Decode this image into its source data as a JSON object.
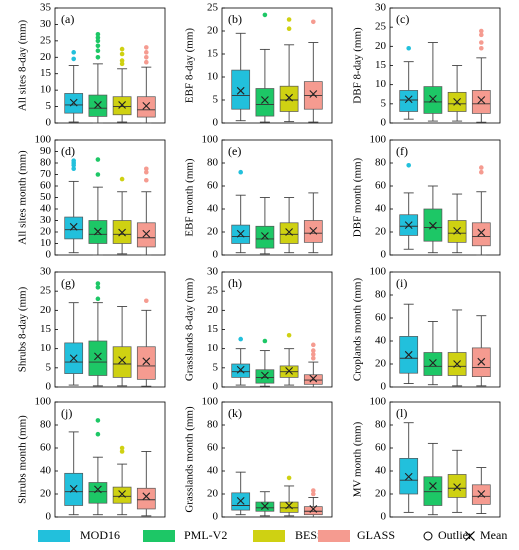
{
  "legend": {
    "series": [
      {
        "name": "MOD16",
        "color": "#22c0dc"
      },
      {
        "name": "PML-V2",
        "color": "#1dc766"
      },
      {
        "name": "BESS",
        "color": "#cfd112"
      },
      {
        "name": "GLASS",
        "color": "#f59b90"
      }
    ],
    "outlier": "Outlier",
    "mean": "Mean"
  },
  "chart_data": [
    {
      "type": "box",
      "label": "(a)",
      "ylabel": "All sites 8-day (mm)",
      "ylim": [
        0,
        35
      ],
      "yticks": [
        0,
        5,
        10,
        15,
        20,
        25,
        30,
        35
      ],
      "boxes": [
        {
          "whisker_low": 0.3,
          "q1": 3,
          "median": 5.5,
          "q3": 9,
          "whisker_high": 17.5,
          "mean": 6.2,
          "outliers": [
            19.5,
            21.5
          ]
        },
        {
          "whisker_low": 0,
          "q1": 2,
          "median": 4.5,
          "q3": 8.5,
          "whisker_high": 18,
          "mean": 5.5,
          "outliers": [
            20,
            22,
            23.5,
            25,
            26,
            27
          ]
        },
        {
          "whisker_low": 0.3,
          "q1": 2.5,
          "median": 5,
          "q3": 8,
          "whisker_high": 16.5,
          "mean": 5.5,
          "outliers": [
            18,
            19,
            21,
            22.5
          ]
        },
        {
          "whisker_low": 0,
          "q1": 1.8,
          "median": 4,
          "q3": 8,
          "whisker_high": 17,
          "mean": 5.2,
          "outliers": [
            18.5,
            20,
            21.5,
            23
          ]
        }
      ]
    },
    {
      "type": "box",
      "label": "(b)",
      "ylabel": "EBF 8-day (mm)",
      "ylim": [
        0,
        25
      ],
      "yticks": [
        0,
        5,
        10,
        15,
        20,
        25
      ],
      "boxes": [
        {
          "whisker_low": 0.5,
          "q1": 3,
          "median": 6,
          "q3": 11.5,
          "whisker_high": 19.5,
          "mean": 7,
          "outliers": []
        },
        {
          "whisker_low": 0.2,
          "q1": 1.5,
          "median": 4,
          "q3": 7.5,
          "whisker_high": 16,
          "mean": 5,
          "outliers": [
            23.5
          ]
        },
        {
          "whisker_low": 0.3,
          "q1": 2.5,
          "median": 5,
          "q3": 8,
          "whisker_high": 17,
          "mean": 5.5,
          "outliers": [
            20.5,
            22.5
          ]
        },
        {
          "whisker_low": 0.2,
          "q1": 3,
          "median": 6,
          "q3": 9,
          "whisker_high": 17.5,
          "mean": 6.3,
          "outliers": [
            22
          ]
        }
      ]
    },
    {
      "type": "box",
      "label": "(c)",
      "ylabel": "DBF 8-day (mm)",
      "ylim": [
        0,
        30
      ],
      "yticks": [
        0,
        5,
        10,
        15,
        20,
        25,
        30
      ],
      "boxes": [
        {
          "whisker_low": 1,
          "q1": 3,
          "median": 6,
          "q3": 8.5,
          "whisker_high": 16,
          "mean": 6.2,
          "outliers": [
            19.5
          ]
        },
        {
          "whisker_low": 0.5,
          "q1": 2.5,
          "median": 5.5,
          "q3": 9.5,
          "whisker_high": 21,
          "mean": 6.3,
          "outliers": []
        },
        {
          "whisker_low": 0.5,
          "q1": 3,
          "median": 5,
          "q3": 8,
          "whisker_high": 15,
          "mean": 5.5,
          "outliers": []
        },
        {
          "whisker_low": 0.2,
          "q1": 2.5,
          "median": 5,
          "q3": 8.5,
          "whisker_high": 17,
          "mean": 6,
          "outliers": [
            19.5,
            21,
            23,
            24
          ]
        }
      ]
    },
    {
      "type": "box",
      "label": "(d)",
      "ylabel": "All sites month (mm)",
      "ylim": [
        0,
        100
      ],
      "yticks": [
        0,
        10,
        20,
        30,
        40,
        50,
        60,
        70,
        80,
        90,
        100
      ],
      "boxes": [
        {
          "whisker_low": 2,
          "q1": 14,
          "median": 22,
          "q3": 33,
          "whisker_high": 64,
          "mean": 24.5,
          "outliers": [
            75,
            78,
            80,
            82
          ]
        },
        {
          "whisker_low": 0,
          "q1": 10,
          "median": 18,
          "q3": 30,
          "whisker_high": 59,
          "mean": 20.5,
          "outliers": [
            70,
            83
          ]
        },
        {
          "whisker_low": 1,
          "q1": 10,
          "median": 18,
          "q3": 30,
          "whisker_high": 55,
          "mean": 19.5,
          "outliers": [
            66
          ]
        },
        {
          "whisker_low": 0,
          "q1": 7,
          "median": 15,
          "q3": 28,
          "whisker_high": 55,
          "mean": 18.5,
          "outliers": [
            65,
            72,
            75
          ]
        }
      ]
    },
    {
      "type": "box",
      "label": "(e)",
      "ylabel": "EBF month (mm)",
      "ylim": [
        0,
        100
      ],
      "yticks": [
        0,
        20,
        40,
        60,
        80,
        100
      ],
      "boxes": [
        {
          "whisker_low": 2,
          "q1": 10,
          "median": 16,
          "q3": 26,
          "whisker_high": 52,
          "mean": 18.5,
          "outliers": [
            72
          ]
        },
        {
          "whisker_low": 1,
          "q1": 6,
          "median": 14,
          "q3": 25,
          "whisker_high": 50,
          "mean": 16.5,
          "outliers": []
        },
        {
          "whisker_low": 2,
          "q1": 10,
          "median": 18,
          "q3": 28,
          "whisker_high": 50,
          "mean": 20,
          "outliers": []
        },
        {
          "whisker_low": 2,
          "q1": 11,
          "median": 19,
          "q3": 30,
          "whisker_high": 54,
          "mean": 21,
          "outliers": []
        }
      ]
    },
    {
      "type": "box",
      "label": "(f)",
      "ylabel": "DBF month (mm)",
      "ylim": [
        0,
        100
      ],
      "yticks": [
        0,
        20,
        40,
        60,
        80,
        100
      ],
      "boxes": [
        {
          "whisker_low": 5,
          "q1": 17,
          "median": 25,
          "q3": 35,
          "whisker_high": 54,
          "mean": 26,
          "outliers": [
            78
          ]
        },
        {
          "whisker_low": 2,
          "q1": 12,
          "median": 24,
          "q3": 40,
          "whisker_high": 60,
          "mean": 25.5,
          "outliers": []
        },
        {
          "whisker_low": 2,
          "q1": 11,
          "median": 19,
          "q3": 30,
          "whisker_high": 53,
          "mean": 21,
          "outliers": []
        },
        {
          "whisker_low": 0,
          "q1": 8,
          "median": 16,
          "q3": 28,
          "whisker_high": 55,
          "mean": 19.5,
          "outliers": [
            72,
            76
          ]
        }
      ]
    },
    {
      "type": "box",
      "label": "(g)",
      "ylabel": "Shrubs 8-day (mm)",
      "ylim": [
        0,
        30
      ],
      "yticks": [
        0,
        5,
        10,
        15,
        20,
        25,
        30
      ],
      "boxes": [
        {
          "whisker_low": 0.5,
          "q1": 3.5,
          "median": 6.5,
          "q3": 11.5,
          "whisker_high": 22,
          "mean": 7.5,
          "outliers": []
        },
        {
          "whisker_low": 0.3,
          "q1": 3,
          "median": 6.5,
          "q3": 12,
          "whisker_high": 22,
          "mean": 8,
          "outliers": [
            23,
            26,
            27
          ]
        },
        {
          "whisker_low": 0.3,
          "q1": 2.5,
          "median": 6,
          "q3": 10.5,
          "whisker_high": 21,
          "mean": 7,
          "outliers": []
        },
        {
          "whisker_low": 0.2,
          "q1": 2,
          "median": 5.5,
          "q3": 10.5,
          "whisker_high": 20,
          "mean": 6.7,
          "outliers": [
            22.5
          ]
        }
      ]
    },
    {
      "type": "box",
      "label": "(h)",
      "ylabel": "Grasslands 8-day (mm)",
      "ylim": [
        0,
        30
      ],
      "yticks": [
        0,
        5,
        10,
        15,
        20,
        25,
        30
      ],
      "boxes": [
        {
          "whisker_low": 0.5,
          "q1": 2.5,
          "median": 4,
          "q3": 6,
          "whisker_high": 10,
          "mean": 4.5,
          "outliers": [
            12.5
          ]
        },
        {
          "whisker_low": 0.2,
          "q1": 1,
          "median": 2.5,
          "q3": 4.5,
          "whisker_high": 9.5,
          "mean": 3,
          "outliers": [
            12
          ]
        },
        {
          "whisker_low": 0.5,
          "q1": 2.5,
          "median": 4,
          "q3": 5.5,
          "whisker_high": 10,
          "mean": 4.2,
          "outliers": [
            13.5
          ]
        },
        {
          "whisker_low": 0,
          "q1": 0.7,
          "median": 1.8,
          "q3": 3.2,
          "whisker_high": 6.5,
          "mean": 2.2,
          "outliers": [
            7.5,
            8.5,
            9.5,
            11
          ]
        }
      ]
    },
    {
      "type": "box",
      "label": "(i)",
      "ylabel": "Croplands month (mm)",
      "ylim": [
        0,
        100
      ],
      "yticks": [
        0,
        20,
        40,
        60,
        80,
        100
      ],
      "boxes": [
        {
          "whisker_low": 3,
          "q1": 12,
          "median": 25,
          "q3": 44,
          "whisker_high": 72,
          "mean": 28,
          "outliers": []
        },
        {
          "whisker_low": 2,
          "q1": 10,
          "median": 18,
          "q3": 30,
          "whisker_high": 57,
          "mean": 21,
          "outliers": []
        },
        {
          "whisker_low": 1,
          "q1": 10,
          "median": 18,
          "q3": 30,
          "whisker_high": 67,
          "mean": 20,
          "outliers": []
        },
        {
          "whisker_low": 1,
          "q1": 9,
          "median": 17,
          "q3": 34,
          "whisker_high": 62,
          "mean": 22,
          "outliers": []
        }
      ]
    },
    {
      "type": "box",
      "label": "(j)",
      "ylabel": "Shrubs  month (mm)",
      "ylim": [
        0,
        100
      ],
      "yticks": [
        0,
        20,
        40,
        60,
        80,
        100
      ],
      "boxes": [
        {
          "whisker_low": 2,
          "q1": 10,
          "median": 22,
          "q3": 38,
          "whisker_high": 74,
          "mean": 24.5,
          "outliers": []
        },
        {
          "whisker_low": 2,
          "q1": 12,
          "median": 22,
          "q3": 30,
          "whisker_high": 52,
          "mean": 24,
          "outliers": [
            72,
            84
          ]
        },
        {
          "whisker_low": 2,
          "q1": 12,
          "median": 18,
          "q3": 26,
          "whisker_high": 46,
          "mean": 20,
          "outliers": [
            57,
            60
          ]
        },
        {
          "whisker_low": 1,
          "q1": 7,
          "median": 15,
          "q3": 25,
          "whisker_high": 57,
          "mean": 18,
          "outliers": []
        }
      ]
    },
    {
      "type": "box",
      "label": "(k)",
      "ylabel": "Grasslands month (mm)",
      "ylim": [
        0,
        100
      ],
      "yticks": [
        0,
        20,
        40,
        60,
        80,
        100
      ],
      "boxes": [
        {
          "whisker_low": 2,
          "q1": 6,
          "median": 10,
          "q3": 21,
          "whisker_high": 39,
          "mean": 14,
          "outliers": []
        },
        {
          "whisker_low": 1,
          "q1": 5,
          "median": 8,
          "q3": 13,
          "whisker_high": 22,
          "mean": 9.5,
          "outliers": []
        },
        {
          "whisker_low": 1,
          "q1": 4,
          "median": 8,
          "q3": 13,
          "whisker_high": 27,
          "mean": 10,
          "outliers": [
            34
          ]
        },
        {
          "whisker_low": 0,
          "q1": 2,
          "median": 5,
          "q3": 9,
          "whisker_high": 17,
          "mean": 7,
          "outliers": [
            20,
            23
          ]
        }
      ]
    },
    {
      "type": "box",
      "label": "(l)",
      "ylabel": "MV month (mm)",
      "ylim": [
        0,
        100
      ],
      "yticks": [
        0,
        20,
        40,
        60,
        80,
        100
      ],
      "boxes": [
        {
          "whisker_low": 4,
          "q1": 20,
          "median": 32,
          "q3": 51,
          "whisker_high": 82,
          "mean": 35,
          "outliers": []
        },
        {
          "whisker_low": 2,
          "q1": 10,
          "median": 22,
          "q3": 35,
          "whisker_high": 64,
          "mean": 27,
          "outliers": []
        },
        {
          "whisker_low": 4,
          "q1": 17,
          "median": 25,
          "q3": 37,
          "whisker_high": 58,
          "mean": 26,
          "outliers": []
        },
        {
          "whisker_low": 3,
          "q1": 11,
          "median": 18,
          "q3": 28,
          "whisker_high": 43,
          "mean": 20,
          "outliers": []
        }
      ]
    }
  ]
}
